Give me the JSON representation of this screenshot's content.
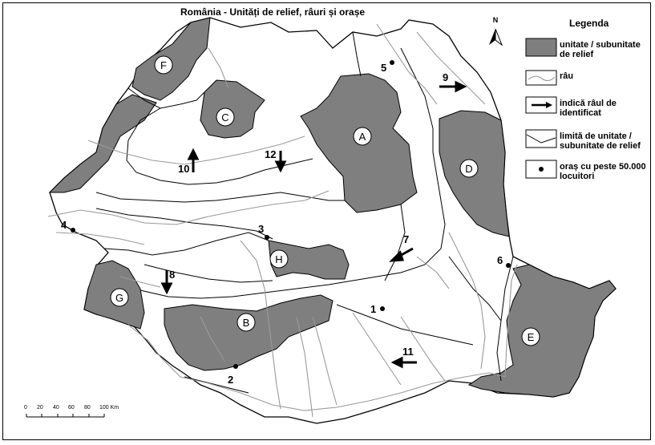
{
  "title": "România - Unități de relief, râuri și orașe",
  "north_label": "N",
  "legend": {
    "title": "Legenda",
    "items": [
      {
        "kind": "relief",
        "label": "unitate / subunitate de relief"
      },
      {
        "kind": "river",
        "label": "râu"
      },
      {
        "kind": "arrow",
        "label": "indică râul de identificat"
      },
      {
        "kind": "boundary",
        "label": "limită de unitate / subunitate de relief"
      },
      {
        "kind": "city",
        "label": "oraș cu peste 50.000 locuitori"
      }
    ]
  },
  "colors": {
    "relief": "#7f7f7f",
    "river": "#9a9a9a",
    "boundary": "#000000",
    "background": "#ffffff"
  },
  "relief_units": [
    "A",
    "B",
    "C",
    "D",
    "E",
    "F",
    "G",
    "H"
  ],
  "cities": [
    "1",
    "2",
    "3",
    "4",
    "5",
    "6"
  ],
  "river_arrows": [
    "7",
    "8",
    "9",
    "10",
    "11",
    "12"
  ],
  "scale": {
    "ticks": [
      "0",
      "20",
      "40",
      "60",
      "80",
      "100 Km"
    ]
  }
}
